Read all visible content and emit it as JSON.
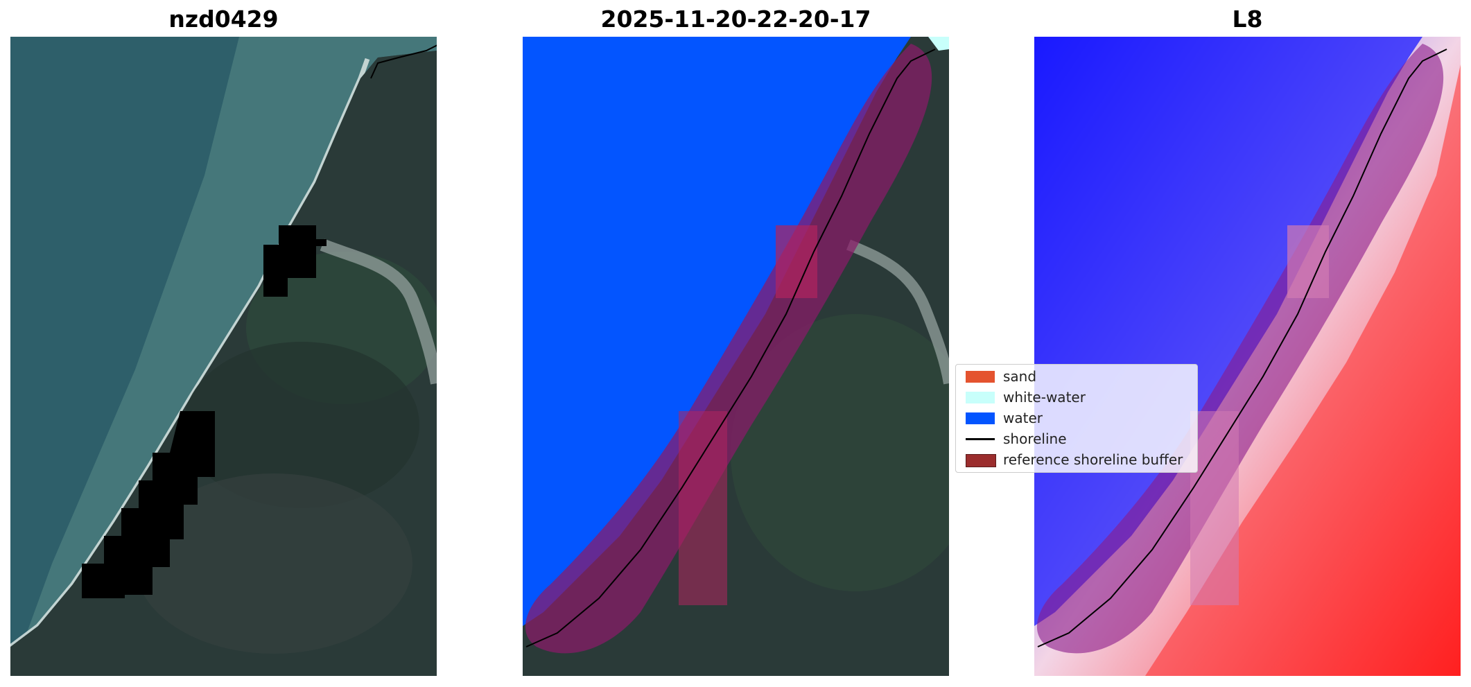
{
  "panels": [
    {
      "title": "nzd0429"
    },
    {
      "title": "2025-11-20-22-20-17"
    },
    {
      "title": "L8"
    }
  ],
  "legend": {
    "items": [
      {
        "label": "sand",
        "color": "#e4532f"
      },
      {
        "label": "white-water",
        "color": "#c8fffb"
      },
      {
        "label": "water",
        "color": "#0355ff"
      },
      {
        "label": "shoreline",
        "color": "#000000"
      },
      {
        "label": "reference shoreline buffer",
        "color": "#9b2d2d"
      }
    ]
  }
}
